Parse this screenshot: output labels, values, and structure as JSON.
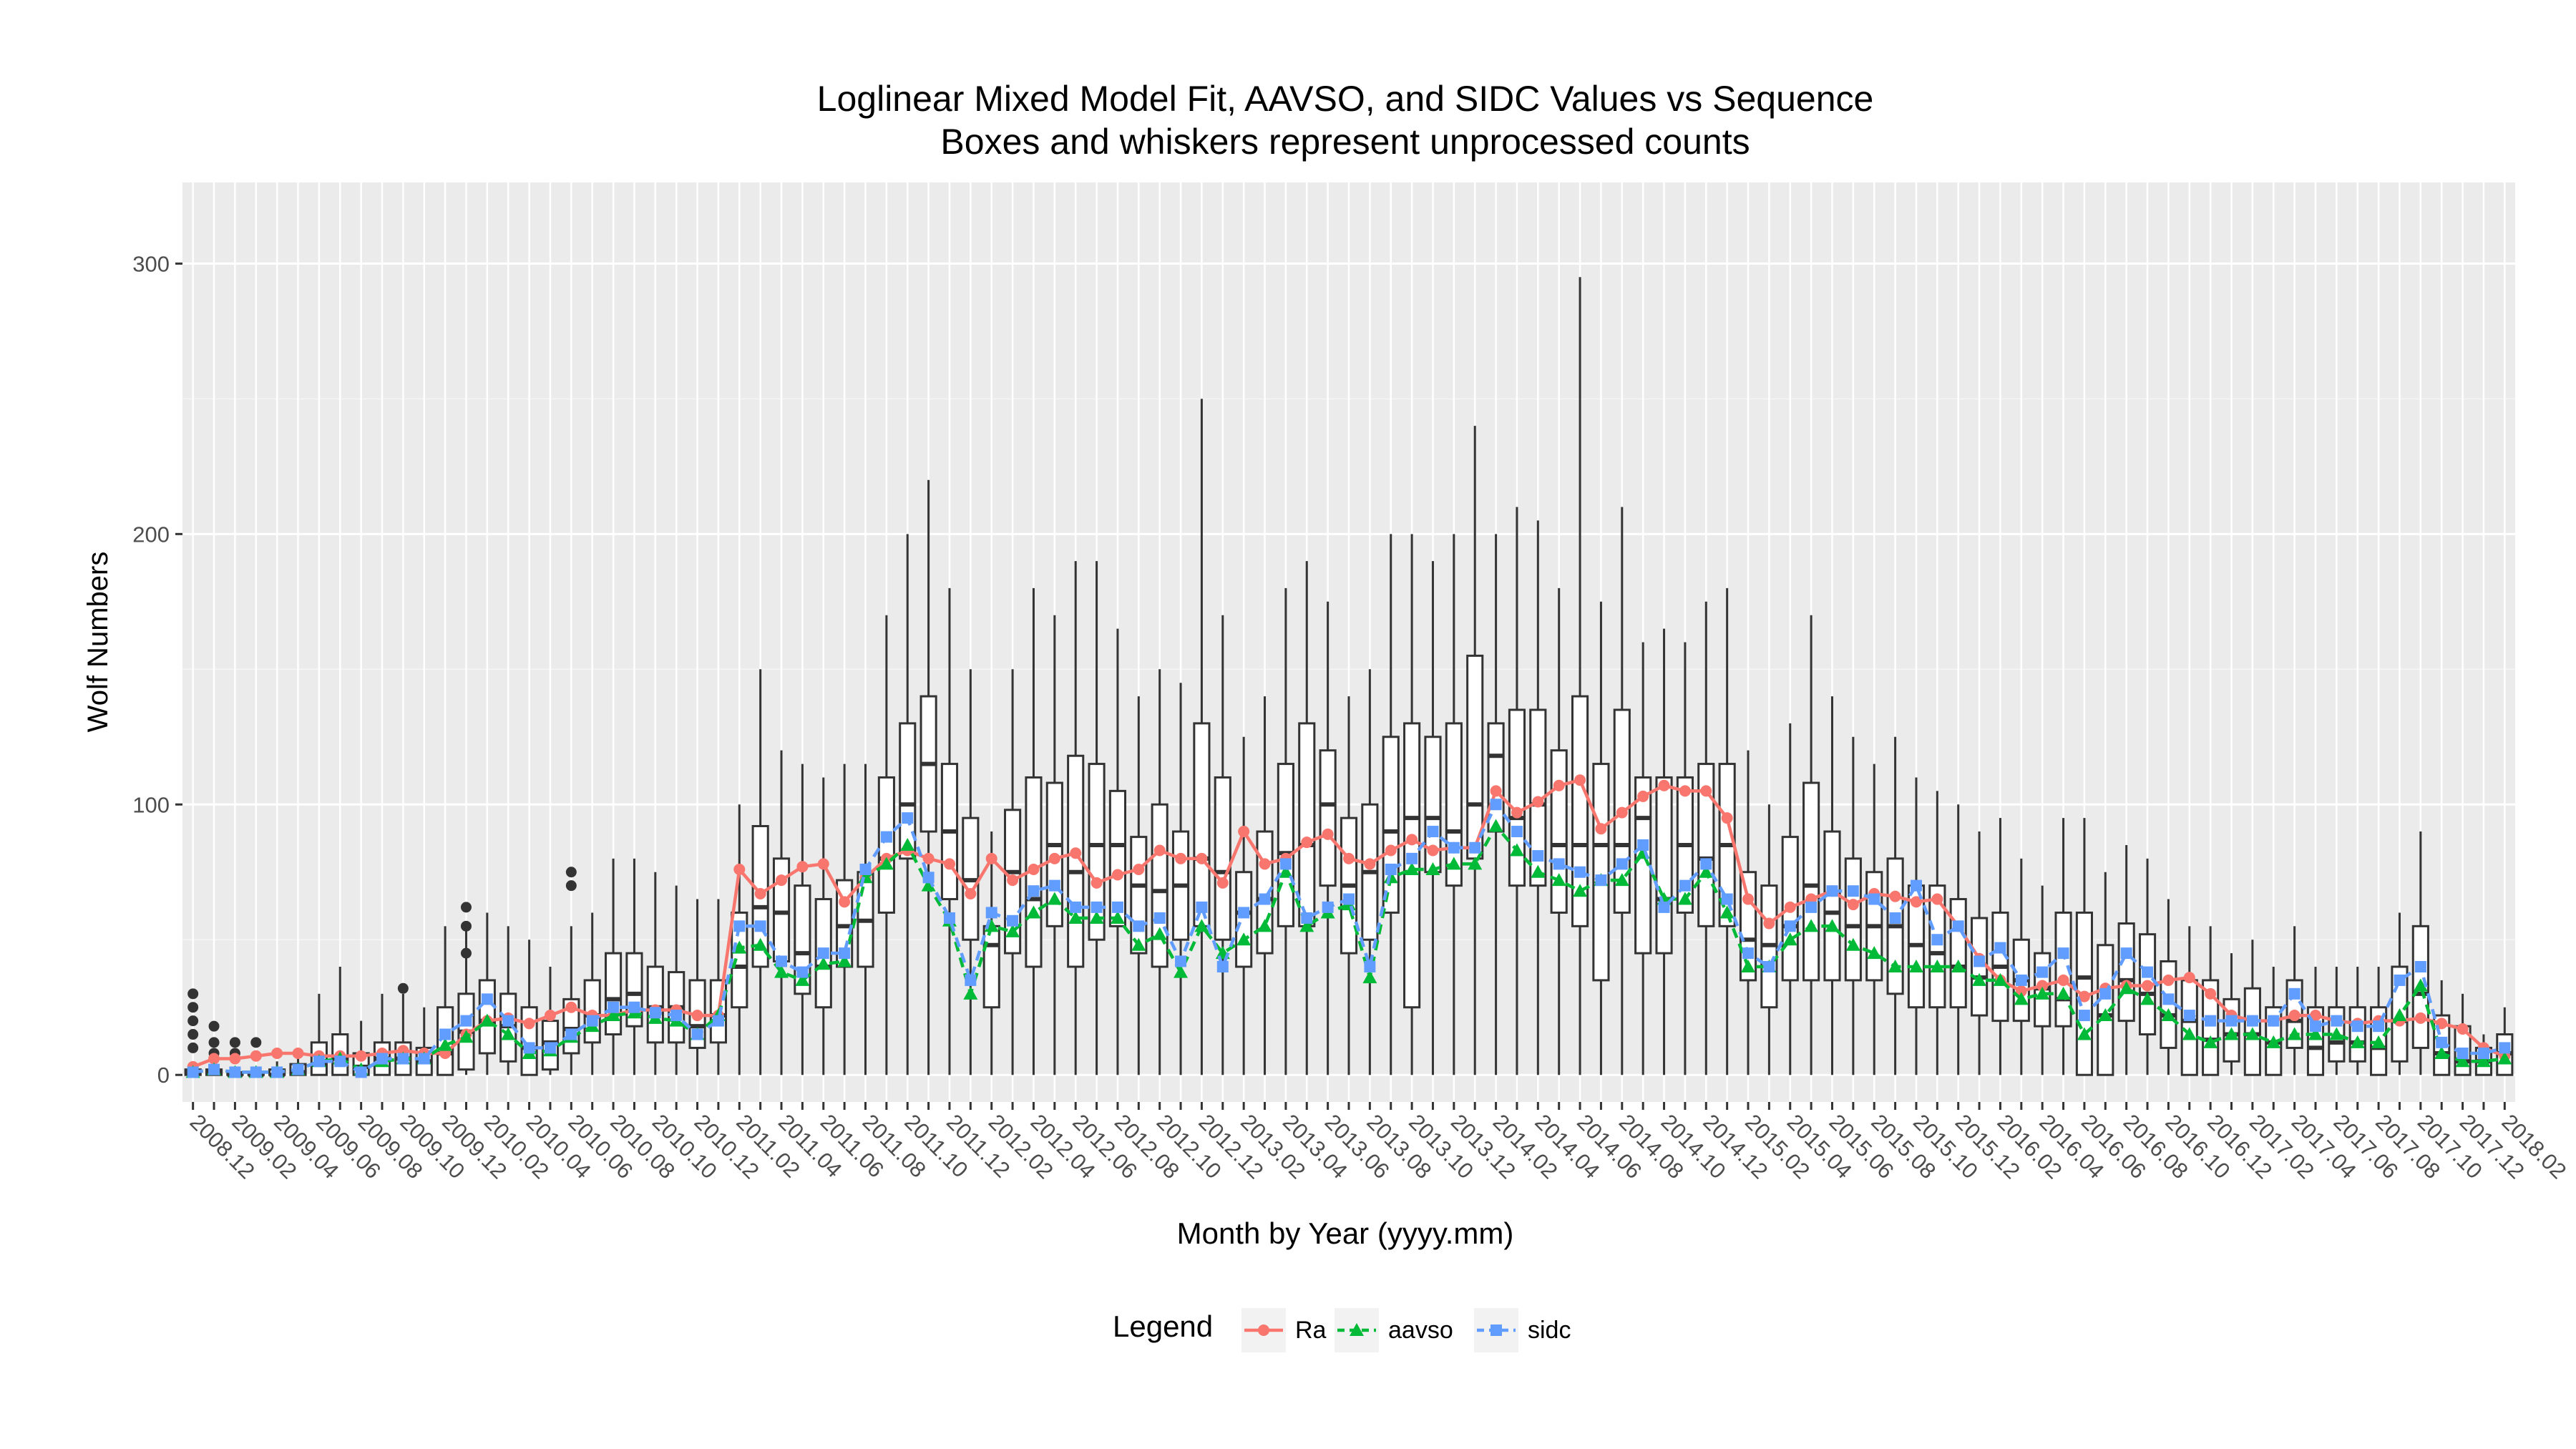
{
  "chart_data": {
    "type": "box",
    "title": "Loglinear Mixed Model Fit, AAVSO, and SIDC Values vs Sequence",
    "subtitle": "Boxes and whiskers represent unprocessed counts",
    "xlabel": "Month by Year (yyyy.mm)",
    "ylabel": "Wolf Numbers",
    "ylim": [
      -10,
      330
    ],
    "yticks": [
      0,
      100,
      200,
      300
    ],
    "grid": true,
    "categories": [
      "2008.12",
      "2009.01",
      "2009.02",
      "2009.03",
      "2009.04",
      "2009.05",
      "2009.06",
      "2009.07",
      "2009.08",
      "2009.09",
      "2009.10",
      "2009.11",
      "2009.12",
      "2010.01",
      "2010.02",
      "2010.03",
      "2010.04",
      "2010.05",
      "2010.06",
      "2010.07",
      "2010.08",
      "2010.09",
      "2010.10",
      "2010.11",
      "2010.12",
      "2011.01",
      "2011.02",
      "2011.03",
      "2011.04",
      "2011.05",
      "2011.06",
      "2011.07",
      "2011.08",
      "2011.09",
      "2011.10",
      "2011.11",
      "2011.12",
      "2012.01",
      "2012.02",
      "2012.03",
      "2012.04",
      "2012.05",
      "2012.06",
      "2012.07",
      "2012.08",
      "2012.09",
      "2012.10",
      "2012.11",
      "2012.12",
      "2013.01",
      "2013.02",
      "2013.03",
      "2013.04",
      "2013.05",
      "2013.06",
      "2013.07",
      "2013.08",
      "2013.09",
      "2013.10",
      "2013.11",
      "2013.12",
      "2014.01",
      "2014.02",
      "2014.03",
      "2014.04",
      "2014.05",
      "2014.06",
      "2014.07",
      "2014.08",
      "2014.09",
      "2014.10",
      "2014.11",
      "2014.12",
      "2015.01",
      "2015.02",
      "2015.03",
      "2015.04",
      "2015.05",
      "2015.06",
      "2015.07",
      "2015.08",
      "2015.09",
      "2015.10",
      "2015.11",
      "2015.12",
      "2016.01",
      "2016.02",
      "2016.03",
      "2016.04",
      "2016.05",
      "2016.06",
      "2016.07",
      "2016.08",
      "2016.09",
      "2016.10",
      "2016.11",
      "2016.12",
      "2017.01",
      "2017.02",
      "2017.03",
      "2017.04",
      "2017.05",
      "2017.06",
      "2017.07",
      "2017.08",
      "2017.09",
      "2017.10",
      "2017.11",
      "2017.12",
      "2018.01",
      "2018.02"
    ],
    "tick_labels": [
      "2008.12",
      "2009.02",
      "2009.04",
      "2009.06",
      "2009.08",
      "2009.10",
      "2009.12",
      "2010.02",
      "2010.04",
      "2010.06",
      "2010.08",
      "2010.10",
      "2010.12",
      "2011.02",
      "2011.04",
      "2011.06",
      "2011.08",
      "2011.10",
      "2011.12",
      "2012.02",
      "2012.04",
      "2012.06",
      "2012.08",
      "2012.10",
      "2012.12",
      "2013.02",
      "2013.04",
      "2013.06",
      "2013.08",
      "2013.10",
      "2013.12",
      "2014.02",
      "2014.04",
      "2014.06",
      "2014.08",
      "2014.10",
      "2014.12",
      "2015.02",
      "2015.04",
      "2015.06",
      "2015.08",
      "2015.10",
      "2015.12",
      "2016.02",
      "2016.04",
      "2016.06",
      "2016.08",
      "2016.10",
      "2016.12",
      "2017.02",
      "2017.04",
      "2017.06",
      "2017.08",
      "2017.10",
      "2017.12",
      "2018.02"
    ],
    "boxes": {
      "median": [
        1.0,
        1.0,
        0.0,
        0.0,
        0.0,
        1.0,
        4.0,
        6.0,
        3.0,
        6.0,
        6.0,
        5.0,
        8.0,
        16.0,
        20.0,
        18.0,
        10.0,
        12.0,
        17.0,
        22.0,
        28.0,
        30.0,
        25.0,
        25.0,
        18.0,
        22.0,
        40.0,
        62.0,
        60.0,
        45.0,
        40.0,
        55.0,
        57.0,
        80.0,
        100.0,
        115.0,
        90.0,
        72.0,
        48.0,
        75.0,
        65.0,
        85.0,
        75.0,
        85.0,
        85.0,
        70.0,
        68.0,
        70.0,
        80.0,
        75.0,
        60.0,
        65.0,
        82.0,
        85.0,
        100.0,
        70.0,
        75.0,
        90.0,
        95.0,
        95.0,
        90.0,
        100.0,
        118.0,
        95.0,
        100.0,
        85.0,
        85.0,
        85.0,
        85.0,
        95.0,
        65.0,
        85.0,
        80.0,
        85.0,
        50.0,
        48.0,
        55.0,
        70.0,
        60.0,
        55.0,
        55.0,
        55.0,
        48.0,
        45.0,
        40.0,
        36.0,
        40.0,
        35.0,
        32.0,
        28.0,
        36.0,
        22.0,
        35.0,
        30.0,
        22.0,
        20.0,
        13.0,
        15.0,
        15.0,
        12.0,
        20.0,
        10.0,
        12.0,
        12.0,
        10.0,
        20.0,
        30.0,
        8.0,
        5.0,
        5.0,
        8.0
      ],
      "q1": [
        0.0,
        0.0,
        0.0,
        0.0,
        0.0,
        0.0,
        0.0,
        0.0,
        0.0,
        0.0,
        0.0,
        0.0,
        0.0,
        2.0,
        8.0,
        5.0,
        0.0,
        2.0,
        8.0,
        12.0,
        15.0,
        18.0,
        12.0,
        12.0,
        10.0,
        12.0,
        25.0,
        40.0,
        42.0,
        30.0,
        25.0,
        40.0,
        40.0,
        60.0,
        80.0,
        90.0,
        65.0,
        50.0,
        25.0,
        45.0,
        40.0,
        55.0,
        40.0,
        50.0,
        55.0,
        45.0,
        40.0,
        50.0,
        55.0,
        50.0,
        40.0,
        45.0,
        55.0,
        55.0,
        70.0,
        45.0,
        50.0,
        60.0,
        25.0,
        75.0,
        70.0,
        80.0,
        90.0,
        70.0,
        70.0,
        60.0,
        55.0,
        35.0,
        60.0,
        45.0,
        45.0,
        60.0,
        55.0,
        55.0,
        35.0,
        25.0,
        35.0,
        35.0,
        35.0,
        35.0,
        35.0,
        30.0,
        25.0,
        25.0,
        25.0,
        22.0,
        20.0,
        20.0,
        18.0,
        18.0,
        0.0,
        0.0,
        20.0,
        15.0,
        10.0,
        0.0,
        0.0,
        5.0,
        0.0,
        0.0,
        10.0,
        0.0,
        5.0,
        5.0,
        0.0,
        5.0,
        10.0,
        0.0,
        0.0,
        0.0,
        0.0
      ],
      "q3": [
        2.0,
        2.0,
        1.0,
        1.0,
        2.0,
        4.0,
        12.0,
        15.0,
        8.0,
        12.0,
        12.0,
        10.0,
        25.0,
        30.0,
        35.0,
        30.0,
        25.0,
        20.0,
        28.0,
        35.0,
        45.0,
        45.0,
        40.0,
        38.0,
        35.0,
        35.0,
        60.0,
        92.0,
        80.0,
        70.0,
        65.0,
        72.0,
        75.0,
        110.0,
        130.0,
        140.0,
        115.0,
        95.0,
        55.0,
        98.0,
        110.0,
        108.0,
        118.0,
        115.0,
        105.0,
        88.0,
        100.0,
        90.0,
        130.0,
        110.0,
        75.0,
        90.0,
        115.0,
        130.0,
        120.0,
        95.0,
        100.0,
        125.0,
        130.0,
        125.0,
        130.0,
        155.0,
        130.0,
        135.0,
        135.0,
        120.0,
        140.0,
        115.0,
        135.0,
        110.0,
        110.0,
        110.0,
        115.0,
        115.0,
        75.0,
        70.0,
        88.0,
        108.0,
        90.0,
        80.0,
        75.0,
        80.0,
        70.0,
        70.0,
        65.0,
        58.0,
        60.0,
        50.0,
        45.0,
        60.0,
        60.0,
        48.0,
        56.0,
        52.0,
        42.0,
        35.0,
        35.0,
        28.0,
        32.0,
        25.0,
        35.0,
        25.0,
        25.0,
        25.0,
        25.0,
        40.0,
        55.0,
        22.0,
        18.0,
        10.0,
        15.0
      ],
      "lower": [
        0,
        0,
        0,
        0,
        0,
        0,
        0,
        0,
        0,
        0,
        0,
        0,
        0,
        0,
        0,
        0,
        0,
        0,
        0,
        0,
        0,
        0,
        0,
        0,
        0,
        0,
        0,
        0,
        0,
        0,
        0,
        0,
        0,
        0,
        0,
        0,
        0,
        0,
        0,
        0,
        0,
        0,
        0,
        0,
        0,
        0,
        0,
        0,
        0,
        0,
        0,
        0,
        0,
        0,
        0,
        0,
        0,
        0,
        0,
        0,
        0,
        0,
        0,
        0,
        0,
        0,
        0,
        0,
        0,
        0,
        0,
        0,
        0,
        0,
        0,
        0,
        0,
        0,
        0,
        0,
        0,
        0,
        0,
        0,
        0,
        0,
        0,
        0,
        0,
        0,
        0,
        0,
        0,
        0,
        0,
        0,
        0,
        0,
        0,
        0,
        0,
        0,
        0,
        0,
        0,
        0,
        0,
        0,
        0,
        0,
        0
      ],
      "upper": [
        5.0,
        5.0,
        3.0,
        3.0,
        5.0,
        10.0,
        30.0,
        40.0,
        20.0,
        30.0,
        30.0,
        25.0,
        55.0,
        55.0,
        60.0,
        55.0,
        50.0,
        40.0,
        55.0,
        60.0,
        80.0,
        80.0,
        75.0,
        70.0,
        65.0,
        65.0,
        100.0,
        150.0,
        120.0,
        115.0,
        110.0,
        115.0,
        115.0,
        170.0,
        200.0,
        220.0,
        180.0,
        150.0,
        90.0,
        150.0,
        180.0,
        170.0,
        190.0,
        190.0,
        165.0,
        140.0,
        150.0,
        145.0,
        250.0,
        170.0,
        125.0,
        140.0,
        180.0,
        190.0,
        175.0,
        140.0,
        150.0,
        200.0,
        200.0,
        190.0,
        200.0,
        240.0,
        200.0,
        210.0,
        205.0,
        180.0,
        295.0,
        175.0,
        210.0,
        160.0,
        165.0,
        160.0,
        175.0,
        180.0,
        120.0,
        100.0,
        130.0,
        170.0,
        140.0,
        125.0,
        115.0,
        125.0,
        110.0,
        105.0,
        100.0,
        90.0,
        95.0,
        80.0,
        70.0,
        95.0,
        95.0,
        75.0,
        85.0,
        80.0,
        65.0,
        55.0,
        55.0,
        45.0,
        50.0,
        40.0,
        55.0,
        40.0,
        40.0,
        40.0,
        40.0,
        60.0,
        90.0,
        35.0,
        30.0,
        15.0,
        25.0
      ],
      "outliers": [
        [
          10,
          15,
          20,
          25,
          30
        ],
        [
          8,
          12,
          18
        ],
        [
          8,
          12
        ],
        [
          12
        ],
        [],
        [],
        [],
        [],
        [],
        [],
        [
          32
        ],
        [],
        [],
        [
          45,
          55,
          62
        ],
        [],
        [],
        [],
        [],
        [
          70,
          75
        ],
        [],
        [],
        [],
        [],
        [],
        [],
        [],
        [],
        [],
        [],
        [],
        [],
        [],
        [],
        [],
        [],
        [],
        [],
        [],
        [],
        [],
        [],
        [],
        [],
        [],
        [],
        [],
        [],
        [],
        [],
        [],
        [],
        [],
        [],
        [],
        [],
        [],
        [],
        [],
        [],
        [],
        [],
        [],
        [],
        [],
        [],
        [],
        [],
        [],
        [],
        [],
        [],
        [],
        [],
        [],
        [],
        [],
        [],
        [],
        [],
        [],
        [],
        [],
        [],
        [],
        [],
        [],
        [],
        [],
        [],
        [],
        [],
        [],
        [],
        [],
        [],
        [],
        [],
        [],
        [],
        [],
        [],
        [],
        [],
        [],
        [],
        [],
        [],
        [],
        [],
        [],
        []
      ]
    },
    "series": [
      {
        "name": "Ra",
        "color": "#F8766D",
        "marker": "circle",
        "linestyle": "solid",
        "values": [
          3.0,
          6.0,
          6.0,
          7.0,
          8.0,
          8.0,
          7.0,
          7.0,
          7.0,
          8.0,
          9.0,
          8.0,
          8.0,
          15.0,
          20.0,
          21.0,
          19.0,
          22.0,
          25.0,
          22.0,
          22.0,
          24.0,
          24.0,
          24.0,
          22.0,
          22.0,
          76.0,
          67.0,
          72.0,
          77.0,
          78.0,
          64.0,
          73.0,
          80.0,
          83.0,
          80.0,
          78.0,
          67.0,
          80.0,
          72.0,
          76.0,
          80.0,
          82.0,
          71.0,
          74.0,
          76.0,
          83.0,
          80.0,
          80.0,
          71.0,
          90.0,
          78.0,
          80.0,
          86.0,
          89.0,
          80.0,
          78.0,
          83.0,
          87.0,
          83.0,
          84.0,
          84.0,
          105.0,
          97.0,
          101.0,
          107.0,
          109.0,
          91.0,
          97.0,
          103.0,
          107.0,
          105.0,
          105.0,
          95.0,
          65.0,
          56.0,
          62.0,
          65.0,
          68.0,
          63.0,
          67.0,
          66.0,
          64.0,
          65.0,
          55.0,
          43.0,
          35.0,
          31.0,
          33.0,
          35.0,
          29.0,
          32.0,
          33.0,
          33.0,
          35.0,
          36.0,
          30.0,
          22.0,
          20.0,
          20.0,
          22.0,
          22.0,
          20.0,
          19.0,
          20.0,
          20.0,
          21.0,
          19.0,
          17.0,
          10.0,
          7.0
        ]
      },
      {
        "name": "aavso",
        "color": "#00BA38",
        "marker": "triangle",
        "linestyle": "dashed",
        "values": [
          1.0,
          2.0,
          1.0,
          1.0,
          1.0,
          2.0,
          5.0,
          6.0,
          2.0,
          5.0,
          6.0,
          6.0,
          11.0,
          14.0,
          20.0,
          15.0,
          8.0,
          9.0,
          14.0,
          18.0,
          22.0,
          23.0,
          21.0,
          20.0,
          15.0,
          22.0,
          47.0,
          48.0,
          38.0,
          35.0,
          41.0,
          42.0,
          73.0,
          78.0,
          85.0,
          70.0,
          57.0,
          30.0,
          55.0,
          53.0,
          60.0,
          65.0,
          58.0,
          58.0,
          58.0,
          48.0,
          52.0,
          38.0,
          55.0,
          45.0,
          50.0,
          55.0,
          75.0,
          55.0,
          60.0,
          63.0,
          36.0,
          73.0,
          76.0,
          76.0,
          78.0,
          78.0,
          92.0,
          83.0,
          75.0,
          72.0,
          68.0,
          72.0,
          72.0,
          82.0,
          65.0,
          65.0,
          75.0,
          60.0,
          40.0,
          40.0,
          50.0,
          55.0,
          55.0,
          48.0,
          45.0,
          40.0,
          40.0,
          40.0,
          40.0,
          35.0,
          35.0,
          28.0,
          30.0,
          30.0,
          15.0,
          22.0,
          32.0,
          28.0,
          22.0,
          15.0,
          12.0,
          15.0,
          15.0,
          12.0,
          15.0,
          15.0,
          15.0,
          12.0,
          12.0,
          22.0,
          33.0,
          8.0,
          5.0,
          5.0,
          6.0
        ]
      },
      {
        "name": "sidc",
        "color": "#619CFF",
        "marker": "square",
        "linestyle": "dashed",
        "values": [
          1.0,
          2.0,
          1.0,
          1.0,
          1.0,
          2.0,
          5.0,
          5.0,
          1.0,
          6.0,
          6.0,
          6.0,
          15.0,
          20.0,
          28.0,
          20.0,
          10.0,
          10.0,
          15.0,
          20.0,
          25.0,
          25.0,
          23.0,
          22.0,
          15.0,
          20.0,
          55.0,
          55.0,
          42.0,
          38.0,
          45.0,
          45.0,
          76.0,
          88.0,
          95.0,
          73.0,
          58.0,
          35.0,
          60.0,
          57.0,
          68.0,
          70.0,
          62.0,
          62.0,
          62.0,
          55.0,
          58.0,
          42.0,
          62.0,
          40.0,
          60.0,
          65.0,
          78.0,
          58.0,
          62.0,
          65.0,
          40.0,
          76.0,
          80.0,
          90.0,
          84.0,
          84.0,
          100.0,
          90.0,
          81.0,
          78.0,
          75.0,
          72.0,
          78.0,
          85.0,
          62.0,
          70.0,
          78.0,
          65.0,
          45.0,
          40.0,
          55.0,
          62.0,
          68.0,
          68.0,
          65.0,
          58.0,
          70.0,
          50.0,
          55.0,
          42.0,
          47.0,
          35.0,
          38.0,
          45.0,
          22.0,
          30.0,
          45.0,
          38.0,
          28.0,
          22.0,
          20.0,
          20.0,
          20.0,
          20.0,
          30.0,
          18.0,
          20.0,
          18.0,
          18.0,
          35.0,
          40.0,
          12.0,
          8.0,
          8.0,
          10.0
        ]
      }
    ],
    "legend": {
      "title": "Legend",
      "position": "bottom",
      "entries": [
        "Ra",
        "aavso",
        "sidc"
      ]
    }
  }
}
